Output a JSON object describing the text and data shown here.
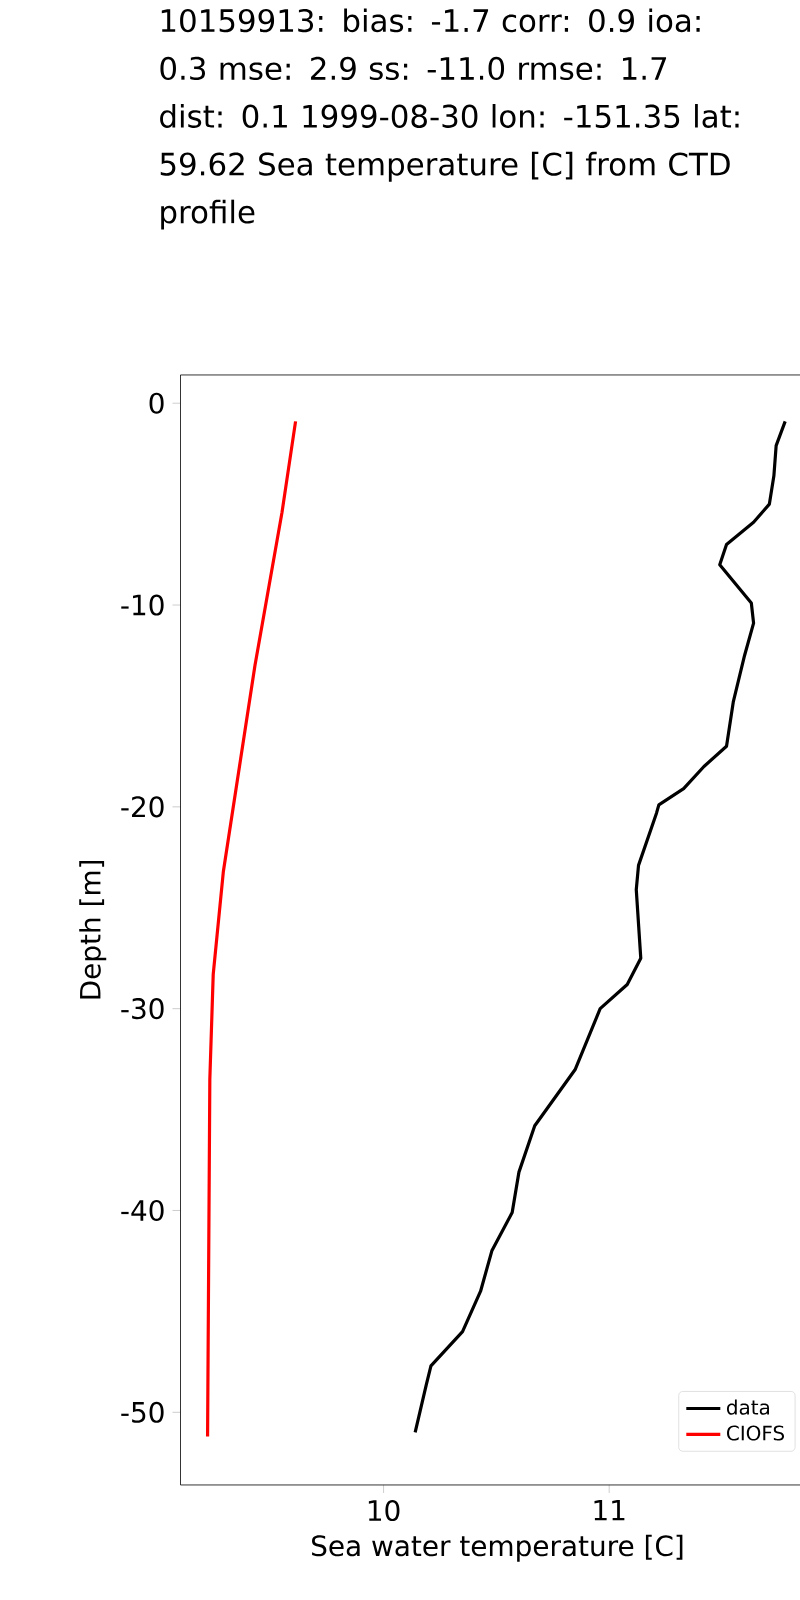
{
  "chart_data": {
    "type": "line",
    "title": "10159913: bias: -1.7  corr: 0.9  ioa: 0.3  mse: 2.9  ss: -11.0  rmse: 1.7  dist: 0.1 1999-08-30 lon: -151.35 lat: 59.62 Sea temperature [C] from CTD profile",
    "xlabel": "Sea water temperature [C]",
    "ylabel": "Depth [m]",
    "xlim": [
      9.1,
      11.91
    ],
    "ylim": [
      -53.6,
      1.4
    ],
    "xticks": [
      10,
      11
    ],
    "yticks": [
      0,
      -10,
      -20,
      -30,
      -40,
      -50
    ],
    "legend": "bottom right",
    "series": [
      {
        "name": "data",
        "color": "#000000",
        "x": [
          11.78,
          11.74,
          11.73,
          11.71,
          11.64,
          11.52,
          11.49,
          11.63,
          11.64,
          11.6,
          11.55,
          11.52,
          11.42,
          11.33,
          11.22,
          11.21,
          11.13,
          11.12,
          11.14,
          11.08,
          10.96,
          10.85,
          10.67,
          10.6,
          10.57,
          10.48,
          10.43,
          10.35,
          10.21,
          10.19,
          10.14
        ],
        "values": [
          -0.9,
          -2.1,
          -3.6,
          -5,
          -5.9,
          -7,
          -8,
          -9.9,
          -10.9,
          -12.5,
          -14.8,
          -17,
          -18,
          -19.1,
          -19.9,
          -20.3,
          -22.9,
          -24.1,
          -27.5,
          -28.8,
          -30,
          -33,
          -35.8,
          -38.1,
          -40.1,
          -42,
          -44,
          -46,
          -47.7,
          -48.6,
          -51
        ]
      },
      {
        "name": "CIOFS",
        "color": "#ff0000",
        "x": [
          9.61,
          9.55,
          9.43,
          9.29,
          9.245,
          9.23,
          9.22
        ],
        "values": [
          -0.9,
          -5.4,
          -13,
          -23.2,
          -28.3,
          -33.5,
          -51.2
        ]
      }
    ]
  }
}
